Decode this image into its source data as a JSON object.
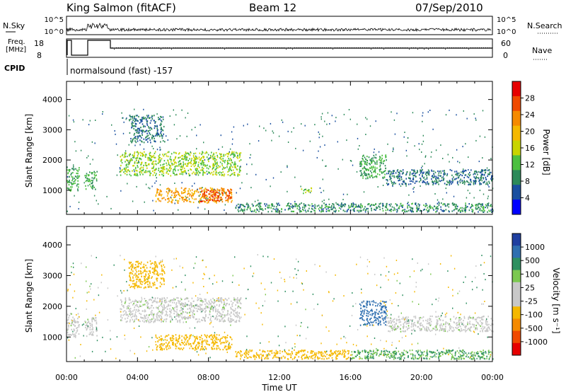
{
  "header": {
    "station": "King Salmon (fitACF)",
    "beam": "Beam 12",
    "date": "07/Sep/2010"
  },
  "aux": {
    "nsky_label": "N.Sky",
    "nsearch_label": "N.Search",
    "freq_label_1": "Freq.",
    "freq_label_2": "[MHz]",
    "nave_label": "Nave",
    "cpid_label": "CPID",
    "cpid_text": "normalsound (fast) -157",
    "noise_ticks": [
      "10^5",
      "10^0"
    ],
    "freq_ticks": [
      "18",
      "8"
    ],
    "nave_ticks": [
      "60",
      "0"
    ]
  },
  "axes": {
    "ylabel": "Slant Range [km]",
    "xlabel": "Time UT",
    "x_ticks": [
      "00:00",
      "04:00",
      "08:00",
      "12:00",
      "16:00",
      "20:00",
      "00:00"
    ],
    "y_ticks": [
      "4000",
      "3000",
      "2000",
      "1000"
    ]
  },
  "colorbars": {
    "power": {
      "label": "Power [dB]",
      "ticks": [
        "28",
        "24",
        "20",
        "16",
        "12",
        "8",
        "4"
      ],
      "colors": [
        "#e60000",
        "#f04a00",
        "#f58a00",
        "#f5b800",
        "#c8d400",
        "#4cc040",
        "#2d8a5a",
        "#1a4fa0",
        "#0000ff"
      ]
    },
    "velocity": {
      "label": "Velocity [m s⁻¹]",
      "ticks": [
        "1000",
        "500",
        "100",
        "25",
        "-25",
        "-100",
        "-500",
        "-1000"
      ],
      "colors": [
        "#1f3fa0",
        "#2f6fb0",
        "#2e9060",
        "#7cc850",
        "#c8c8c8",
        "#c8c8c8",
        "#f5b800",
        "#f58a00",
        "#f04a00",
        "#e60000"
      ]
    }
  },
  "chart_data": [
    {
      "type": "heatmap",
      "title": "Power",
      "xlabel": "Time UT",
      "ylabel": "Slant Range [km]",
      "xlim": [
        "00:00",
        "24:00"
      ],
      "ylim": [
        200,
        4600
      ],
      "colorbar_label": "Power [dB]",
      "colorbar_range": [
        0,
        32
      ],
      "features": [
        {
          "t_start_h": 0.0,
          "t_end_h": 0.7,
          "r_min_km": 1000,
          "r_max_km": 1800,
          "value_db": 10
        },
        {
          "t_start_h": 1.0,
          "t_end_h": 1.7,
          "r_min_km": 1050,
          "r_max_km": 1650,
          "value_db": 10
        },
        {
          "t_start_h": 3.0,
          "t_end_h": 9.8,
          "r_min_km": 1500,
          "r_max_km": 2300,
          "value_db": 14
        },
        {
          "t_start_h": 5.0,
          "t_end_h": 9.3,
          "r_min_km": 600,
          "r_max_km": 1100,
          "value_db": 22
        },
        {
          "t_start_h": 7.5,
          "t_end_h": 9.3,
          "r_min_km": 650,
          "r_max_km": 1050,
          "value_db": 28
        },
        {
          "t_start_h": 3.5,
          "t_end_h": 5.5,
          "r_min_km": 2600,
          "r_max_km": 3500,
          "value_db": 6
        },
        {
          "t_start_h": 9.5,
          "t_end_h": 24.0,
          "r_min_km": 300,
          "r_max_km": 600,
          "value_db": 8
        },
        {
          "t_start_h": 13.2,
          "t_end_h": 13.8,
          "r_min_km": 900,
          "r_max_km": 1100,
          "value_db": 14
        },
        {
          "t_start_h": 16.5,
          "t_end_h": 18.0,
          "r_min_km": 1400,
          "r_max_km": 2200,
          "value_db": 10
        },
        {
          "t_start_h": 18.0,
          "t_end_h": 24.0,
          "r_min_km": 1200,
          "r_max_km": 1700,
          "value_db": 6
        }
      ]
    },
    {
      "type": "heatmap",
      "title": "Velocity",
      "xlabel": "Time UT",
      "ylabel": "Slant Range [km]",
      "xlim": [
        "00:00",
        "24:00"
      ],
      "ylim": [
        200,
        4600
      ],
      "colorbar_label": "Velocity [m s⁻¹]",
      "colorbar_range": [
        -1000,
        1000
      ],
      "features": [
        {
          "t_start_h": 0.0,
          "t_end_h": 0.7,
          "r_min_km": 1000,
          "r_max_km": 1800,
          "value_ms": 0
        },
        {
          "t_start_h": 1.0,
          "t_end_h": 1.7,
          "r_min_km": 1050,
          "r_max_km": 1650,
          "value_ms": 0
        },
        {
          "t_start_h": 3.0,
          "t_end_h": 9.8,
          "r_min_km": 1500,
          "r_max_km": 2300,
          "value_ms": 0
        },
        {
          "t_start_h": 5.0,
          "t_end_h": 9.3,
          "r_min_km": 600,
          "r_max_km": 1100,
          "value_ms": -200
        },
        {
          "t_start_h": 3.5,
          "t_end_h": 5.5,
          "r_min_km": 2600,
          "r_max_km": 3500,
          "value_ms": -150
        },
        {
          "t_start_h": 9.5,
          "t_end_h": 16.0,
          "r_min_km": 300,
          "r_max_km": 600,
          "value_ms": -150
        },
        {
          "t_start_h": 16.0,
          "t_end_h": 24.0,
          "r_min_km": 300,
          "r_max_km": 600,
          "value_ms": 60
        },
        {
          "t_start_h": 16.5,
          "t_end_h": 18.0,
          "r_min_km": 1400,
          "r_max_km": 2200,
          "value_ms": 700
        },
        {
          "t_start_h": 18.0,
          "t_end_h": 24.0,
          "r_min_km": 1200,
          "r_max_km": 1700,
          "value_ms": 0
        }
      ]
    }
  ]
}
